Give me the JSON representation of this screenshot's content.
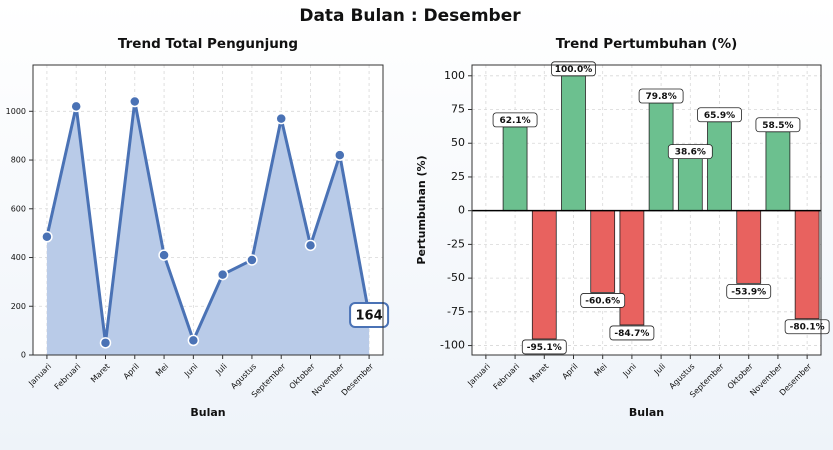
{
  "title": "Data Bulan : Desember",
  "chart_data": [
    {
      "type": "area",
      "title": "Trend Total Pengunjung",
      "xlabel": "Bulan",
      "categories": [
        "Januari",
        "Februari",
        "Maret",
        "April",
        "Mei",
        "Juni",
        "Juli",
        "Agustus",
        "September",
        "Oktober",
        "November",
        "Desember"
      ],
      "values": [
        485,
        1020,
        50,
        1040,
        410,
        60,
        330,
        390,
        970,
        450,
        820,
        164
      ],
      "color": "#4a72b5",
      "fill": "#b9cbe8",
      "ylim": [
        0,
        1190
      ],
      "yticks": [
        0,
        200,
        400,
        600,
        800,
        1000
      ],
      "grid": true
    },
    {
      "type": "bar",
      "title": "Trend Pertumbuhan (%)",
      "xlabel": "Bulan",
      "ylabel": "Pertumbuhan (%)",
      "categories": [
        "Januari",
        "Februari",
        "Maret",
        "April",
        "Mei",
        "Juni",
        "Juli",
        "Agustus",
        "September",
        "Oktober",
        "November",
        "Desember"
      ],
      "values": [
        null,
        62.1,
        -95.1,
        100.0,
        -60.6,
        -84.7,
        79.8,
        38.6,
        65.9,
        -53.9,
        58.5,
        -80.1
      ],
      "value_labels": [
        null,
        "62.1%",
        "-95.1%",
        "100.0%",
        "-60.6%",
        "-84.7%",
        "79.8%",
        "38.6%",
        "65.9%",
        "-53.9%",
        "58.5%",
        "-80.1%"
      ],
      "positive_color": "#6cc08f",
      "negative_color": "#e8625f",
      "ylim": [
        -107,
        108
      ],
      "yticks": [
        -100,
        -75,
        -50,
        -25,
        0,
        25,
        50,
        75,
        100
      ],
      "grid": true
    }
  ]
}
